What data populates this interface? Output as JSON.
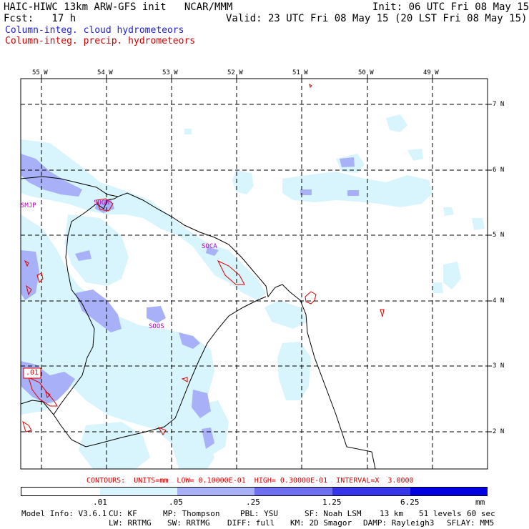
{
  "header": {
    "title": "HAIC-HIWC 13km ARW-GFS init   NCAR/MMM",
    "init": "Init: 06 UTC Fri 08 May 15",
    "fcst": "Fcst:   17 h",
    "valid": "Valid: 23 UTC Fri 08 May 15 (20 LST Fri 08 May 15)",
    "field1": "Column-integ. cloud hydrometeors",
    "field2": "Column-integ. precip. hydrometeors"
  },
  "map": {
    "lon_labels": [
      "55 W",
      "54 W",
      "53 W",
      "52 W",
      "51 W",
      "50 W",
      "49 W"
    ],
    "lat_labels": [
      "7 N",
      "6 N",
      "5 N",
      "4 N",
      "3 N",
      "2 N"
    ],
    "station_labels": [
      "SMJP",
      "SOGM",
      "SOCA",
      "SOOS"
    ],
    "contour_label": ".01"
  },
  "contours_line": "CONTOURS:  UNITS=mm  LOW= 0.10000E-01  HIGH= 0.30000E-01  INTERVAL=X  3.0000",
  "colorbar": {
    "labels": [
      ".01",
      ".05",
      ".25",
      "1.25",
      "6.25"
    ],
    "units": "mm",
    "colors": [
      "#ffffff",
      "#d8f4fc",
      "#a8b0f8",
      "#6e70f0",
      "#3636e8",
      "#0000e0"
    ]
  },
  "footer": {
    "line1_model": "Model Info: V3.6.1",
    "line1_cu": "CU: KF",
    "line1_mp": "MP: Thompson",
    "line1_pbl": "PBL: YSU",
    "line1_sf": "SF: Noah LSM",
    "line1_res": "13 km",
    "line1_lev": "51 levels",
    "line1_dt": "60 sec",
    "line2_lw": "LW: RRTMG",
    "line2_sw": "SW: RRTMG",
    "line2_diff": "DIFF: full",
    "line2_km": "KM: 2D Smagor",
    "line2_damp": "DAMP: Rayleigh3",
    "line2_sflay": "SFLAY: MM5"
  }
}
